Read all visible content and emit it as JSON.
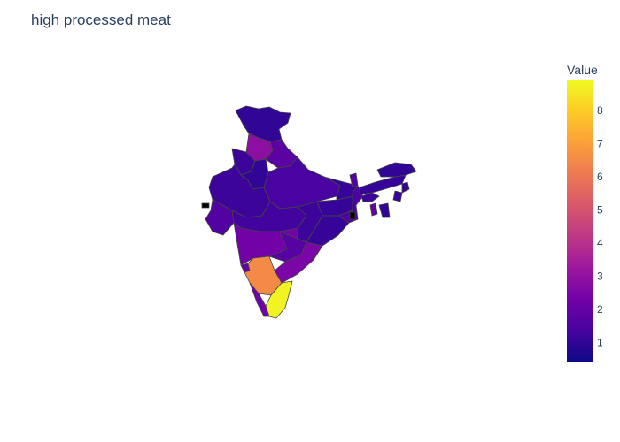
{
  "title": "high processed meat",
  "colorbar": {
    "title": "Value",
    "range": [
      0.4,
      8.9
    ],
    "ticks": [
      "1",
      "2",
      "3",
      "4",
      "5",
      "6",
      "7",
      "8"
    ],
    "tick_values": [
      1,
      2,
      3,
      4,
      5,
      6,
      7,
      8
    ],
    "colorscale": [
      "#0d0887",
      "#46039f",
      "#7201a8",
      "#9c179e",
      "#bd3786",
      "#d8576b",
      "#ed7953",
      "#fb9f3a",
      "#fdca26",
      "#f0f921"
    ]
  },
  "regions": [
    {
      "name": "Jammu & Kashmir",
      "value": 1.0
    },
    {
      "name": "Himachal Pradesh",
      "value": 2.9
    },
    {
      "name": "Punjab",
      "value": 1.2
    },
    {
      "name": "Uttarakhand",
      "value": 1.8
    },
    {
      "name": "Haryana",
      "value": 1.0
    },
    {
      "name": "Rajasthan",
      "value": 1.2
    },
    {
      "name": "Uttar Pradesh",
      "value": 1.4
    },
    {
      "name": "Bihar",
      "value": 1.1
    },
    {
      "name": "Gujarat",
      "value": 1.6
    },
    {
      "name": "Madhya Pradesh",
      "value": 1.3
    },
    {
      "name": "Jharkhand",
      "value": 1.1
    },
    {
      "name": "West Bengal",
      "value": 1.5
    },
    {
      "name": "Chhattisgarh",
      "value": 1.2
    },
    {
      "name": "Odisha",
      "value": 1.1
    },
    {
      "name": "Maharashtra",
      "value": 2.3
    },
    {
      "name": "Telangana",
      "value": 1.7
    },
    {
      "name": "Andhra Pradesh",
      "value": 2.5
    },
    {
      "name": "Goa",
      "value": 2.0
    },
    {
      "name": "Karnataka",
      "value": 6.5
    },
    {
      "name": "Kerala",
      "value": 2.2
    },
    {
      "name": "Tamil Nadu",
      "value": 8.8
    },
    {
      "name": "Sikkim",
      "value": 1.6
    },
    {
      "name": "Assam",
      "value": 1.1
    },
    {
      "name": "Arunachal Pradesh",
      "value": 1.0
    },
    {
      "name": "Meghalaya",
      "value": 1.2
    },
    {
      "name": "Tripura",
      "value": 2.0
    },
    {
      "name": "Nagaland",
      "value": 1.0
    },
    {
      "name": "Manipur",
      "value": 1.1
    },
    {
      "name": "Mizoram",
      "value": 1.0
    }
  ]
}
